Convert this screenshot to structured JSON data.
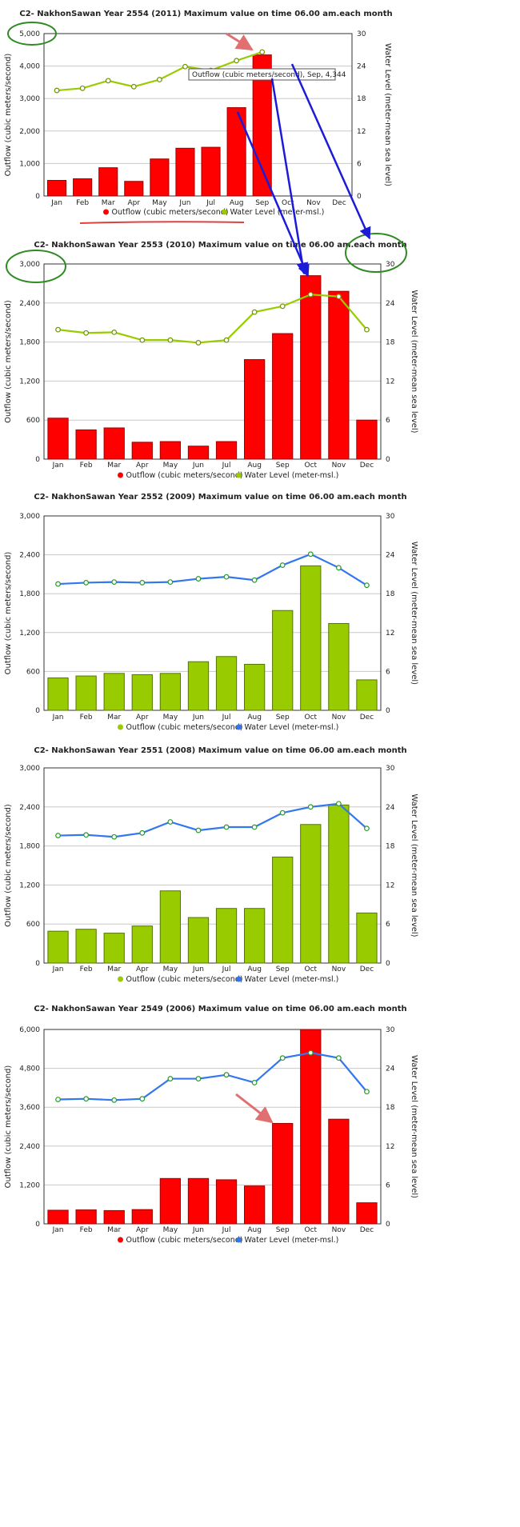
{
  "legend": {
    "outflow": "Outflow (cubic meters/second)",
    "water_level": "Water Level (meter-msl.)"
  },
  "colors": {
    "red_bar": "#ff0000",
    "green_bar": "#99cc00",
    "green_line": "#99cc00",
    "blue_line": "#3377ee",
    "highlight_circle": "#2e8b22",
    "arrow_blue": "#1b1bd8",
    "arrow_pink": "#e07070"
  },
  "chart_data": [
    {
      "type": "bar",
      "title": "C2- NakhonSawan Year 2554 (2011) Maximum value on time 06.00 am.each month",
      "categories": [
        "Jan",
        "Feb",
        "Mar",
        "Apr",
        "May",
        "Jun",
        "Jul",
        "Aug",
        "Sep",
        "Oct",
        "Nov",
        "Dec"
      ],
      "ylabel": "Outflow (cubic meters/second)",
      "y2label": "Water Level (meter-mean sea level)",
      "ylim": [
        0,
        5000
      ],
      "y2lim": [
        0,
        30
      ],
      "yticks": [
        "0",
        "1,000",
        "2,000",
        "3,000",
        "4,000",
        "5,000"
      ],
      "y2ticks": [
        "0",
        "6",
        "12",
        "18",
        "24",
        "30"
      ],
      "grid": true,
      "legend_position": "bottom",
      "series": [
        {
          "name": "Outflow (cubic meters/second)",
          "type": "bar",
          "color": "#ff0000",
          "values": [
            480,
            530,
            870,
            450,
            1140,
            1470,
            1500,
            2720,
            4344,
            null,
            null,
            null
          ]
        },
        {
          "name": "Water Level (meter-msl.)",
          "type": "line",
          "axis": "right",
          "color": "#99cc00",
          "values": [
            19.5,
            19.9,
            21.3,
            20.2,
            21.5,
            23.9,
            23.2,
            25.0,
            26.6,
            null,
            null,
            null
          ]
        }
      ],
      "tooltip": "Outflow (cubic meters/second), Sep, 4,344"
    },
    {
      "type": "bar",
      "title": "C2- NakhonSawan Year 2553 (2010) Maximum value on time 06.00 am.each month",
      "categories": [
        "Jan",
        "Feb",
        "Mar",
        "Apr",
        "May",
        "Jun",
        "Jul",
        "Aug",
        "Sep",
        "Oct",
        "Nov",
        "Dec"
      ],
      "ylabel": "Outflow (cubic meters/second)",
      "y2label": "Water Level (meter-mean sea level)",
      "ylim": [
        0,
        3000
      ],
      "y2lim": [
        0,
        30
      ],
      "yticks": [
        "0",
        "600",
        "1,200",
        "1,800",
        "2,400",
        "3,000"
      ],
      "y2ticks": [
        "0",
        "6",
        "12",
        "18",
        "24",
        "30"
      ],
      "grid": true,
      "legend_position": "bottom",
      "series": [
        {
          "name": "Outflow (cubic meters/second)",
          "type": "bar",
          "color": "#ff0000",
          "values": [
            630,
            450,
            480,
            260,
            270,
            200,
            270,
            1530,
            1930,
            2820,
            2580,
            600
          ]
        },
        {
          "name": "Water Level (meter-msl.)",
          "type": "line",
          "axis": "right",
          "color": "#99cc00",
          "values": [
            19.9,
            19.4,
            19.5,
            18.3,
            18.3,
            17.9,
            18.3,
            22.6,
            23.5,
            25.3,
            25.0,
            19.9
          ]
        }
      ]
    },
    {
      "type": "bar",
      "title": "C2- NakhonSawan Year 2552 (2009) Maximum value on time 06.00 am.each month",
      "categories": [
        "Jan",
        "Feb",
        "Mar",
        "Apr",
        "May",
        "Jun",
        "Jul",
        "Aug",
        "Sep",
        "Oct",
        "Nov",
        "Dec"
      ],
      "ylabel": "Outflow (cubic meters/second)",
      "y2label": "Water Level (meter-mean sea level)",
      "ylim": [
        0,
        3000
      ],
      "y2lim": [
        0,
        30
      ],
      "yticks": [
        "0",
        "600",
        "1,200",
        "1,800",
        "2,400",
        "3,000"
      ],
      "y2ticks": [
        "0",
        "6",
        "12",
        "18",
        "24",
        "30"
      ],
      "grid": true,
      "legend_position": "bottom",
      "series": [
        {
          "name": "Outflow (cubic meters/second)",
          "type": "bar",
          "color": "#99cc00",
          "values": [
            500,
            530,
            570,
            550,
            570,
            750,
            830,
            710,
            1540,
            2230,
            1340,
            470
          ]
        },
        {
          "name": "Water Level (meter-msl.)",
          "type": "line",
          "axis": "right",
          "color": "#3377ee",
          "values": [
            19.5,
            19.7,
            19.8,
            19.7,
            19.8,
            20.3,
            20.6,
            20.1,
            22.4,
            24.1,
            22.0,
            19.3
          ]
        }
      ]
    },
    {
      "type": "bar",
      "title": "C2- NakhonSawan Year 2551 (2008) Maximum value on time 06.00 am.each month",
      "categories": [
        "Jan",
        "Feb",
        "Mar",
        "Apr",
        "May",
        "Jun",
        "Jul",
        "Aug",
        "Sep",
        "Oct",
        "Nov",
        "Dec"
      ],
      "ylabel": "Outflow (cubic meters/second)",
      "y2label": "Water Level (meter-mean sea level)",
      "ylim": [
        0,
        3000
      ],
      "y2lim": [
        0,
        30
      ],
      "yticks": [
        "0",
        "600",
        "1,200",
        "1,800",
        "2,400",
        "3,000"
      ],
      "y2ticks": [
        "0",
        "6",
        "12",
        "18",
        "24",
        "30"
      ],
      "grid": true,
      "legend_position": "bottom",
      "series": [
        {
          "name": "Outflow (cubic meters/second)",
          "type": "bar",
          "color": "#99cc00",
          "values": [
            490,
            520,
            460,
            570,
            1110,
            700,
            840,
            840,
            1630,
            2130,
            2430,
            770
          ]
        },
        {
          "name": "Water Level (meter-msl.)",
          "type": "line",
          "axis": "right",
          "color": "#3377ee",
          "values": [
            19.6,
            19.7,
            19.4,
            20.0,
            21.7,
            20.4,
            20.9,
            20.9,
            23.1,
            24.0,
            24.5,
            20.7
          ]
        }
      ]
    },
    {
      "type": "bar",
      "title": "C2- NakhonSawan Year 2549 (2006) Maximum value on time 06.00 am.each month",
      "categories": [
        "Jan",
        "Feb",
        "Mar",
        "Apr",
        "May",
        "Jun",
        "Jul",
        "Aug",
        "Sep",
        "Oct",
        "Nov",
        "Dec"
      ],
      "ylabel": "Outflow (cubic meters/second)",
      "y2label": "Water Level (meter-mean sea level)",
      "ylim": [
        0,
        6000
      ],
      "y2lim": [
        0,
        30
      ],
      "yticks": [
        "0",
        "1,200",
        "2,400",
        "3,600",
        "4,800",
        "6,000"
      ],
      "y2ticks": [
        "0",
        "6",
        "12",
        "18",
        "24",
        "30"
      ],
      "grid": true,
      "legend_position": "bottom",
      "series": [
        {
          "name": "Outflow (cubic meters/second)",
          "type": "bar",
          "color": "#ff0000",
          "values": [
            420,
            430,
            410,
            440,
            1400,
            1400,
            1360,
            1170,
            3100,
            6000,
            3230,
            650
          ]
        },
        {
          "name": "Water Level (meter-msl.)",
          "type": "line",
          "axis": "right",
          "color": "#3377ee",
          "values": [
            19.2,
            19.3,
            19.1,
            19.3,
            22.4,
            22.4,
            23.0,
            21.8,
            25.6,
            26.4,
            25.6,
            20.4
          ]
        }
      ]
    }
  ]
}
